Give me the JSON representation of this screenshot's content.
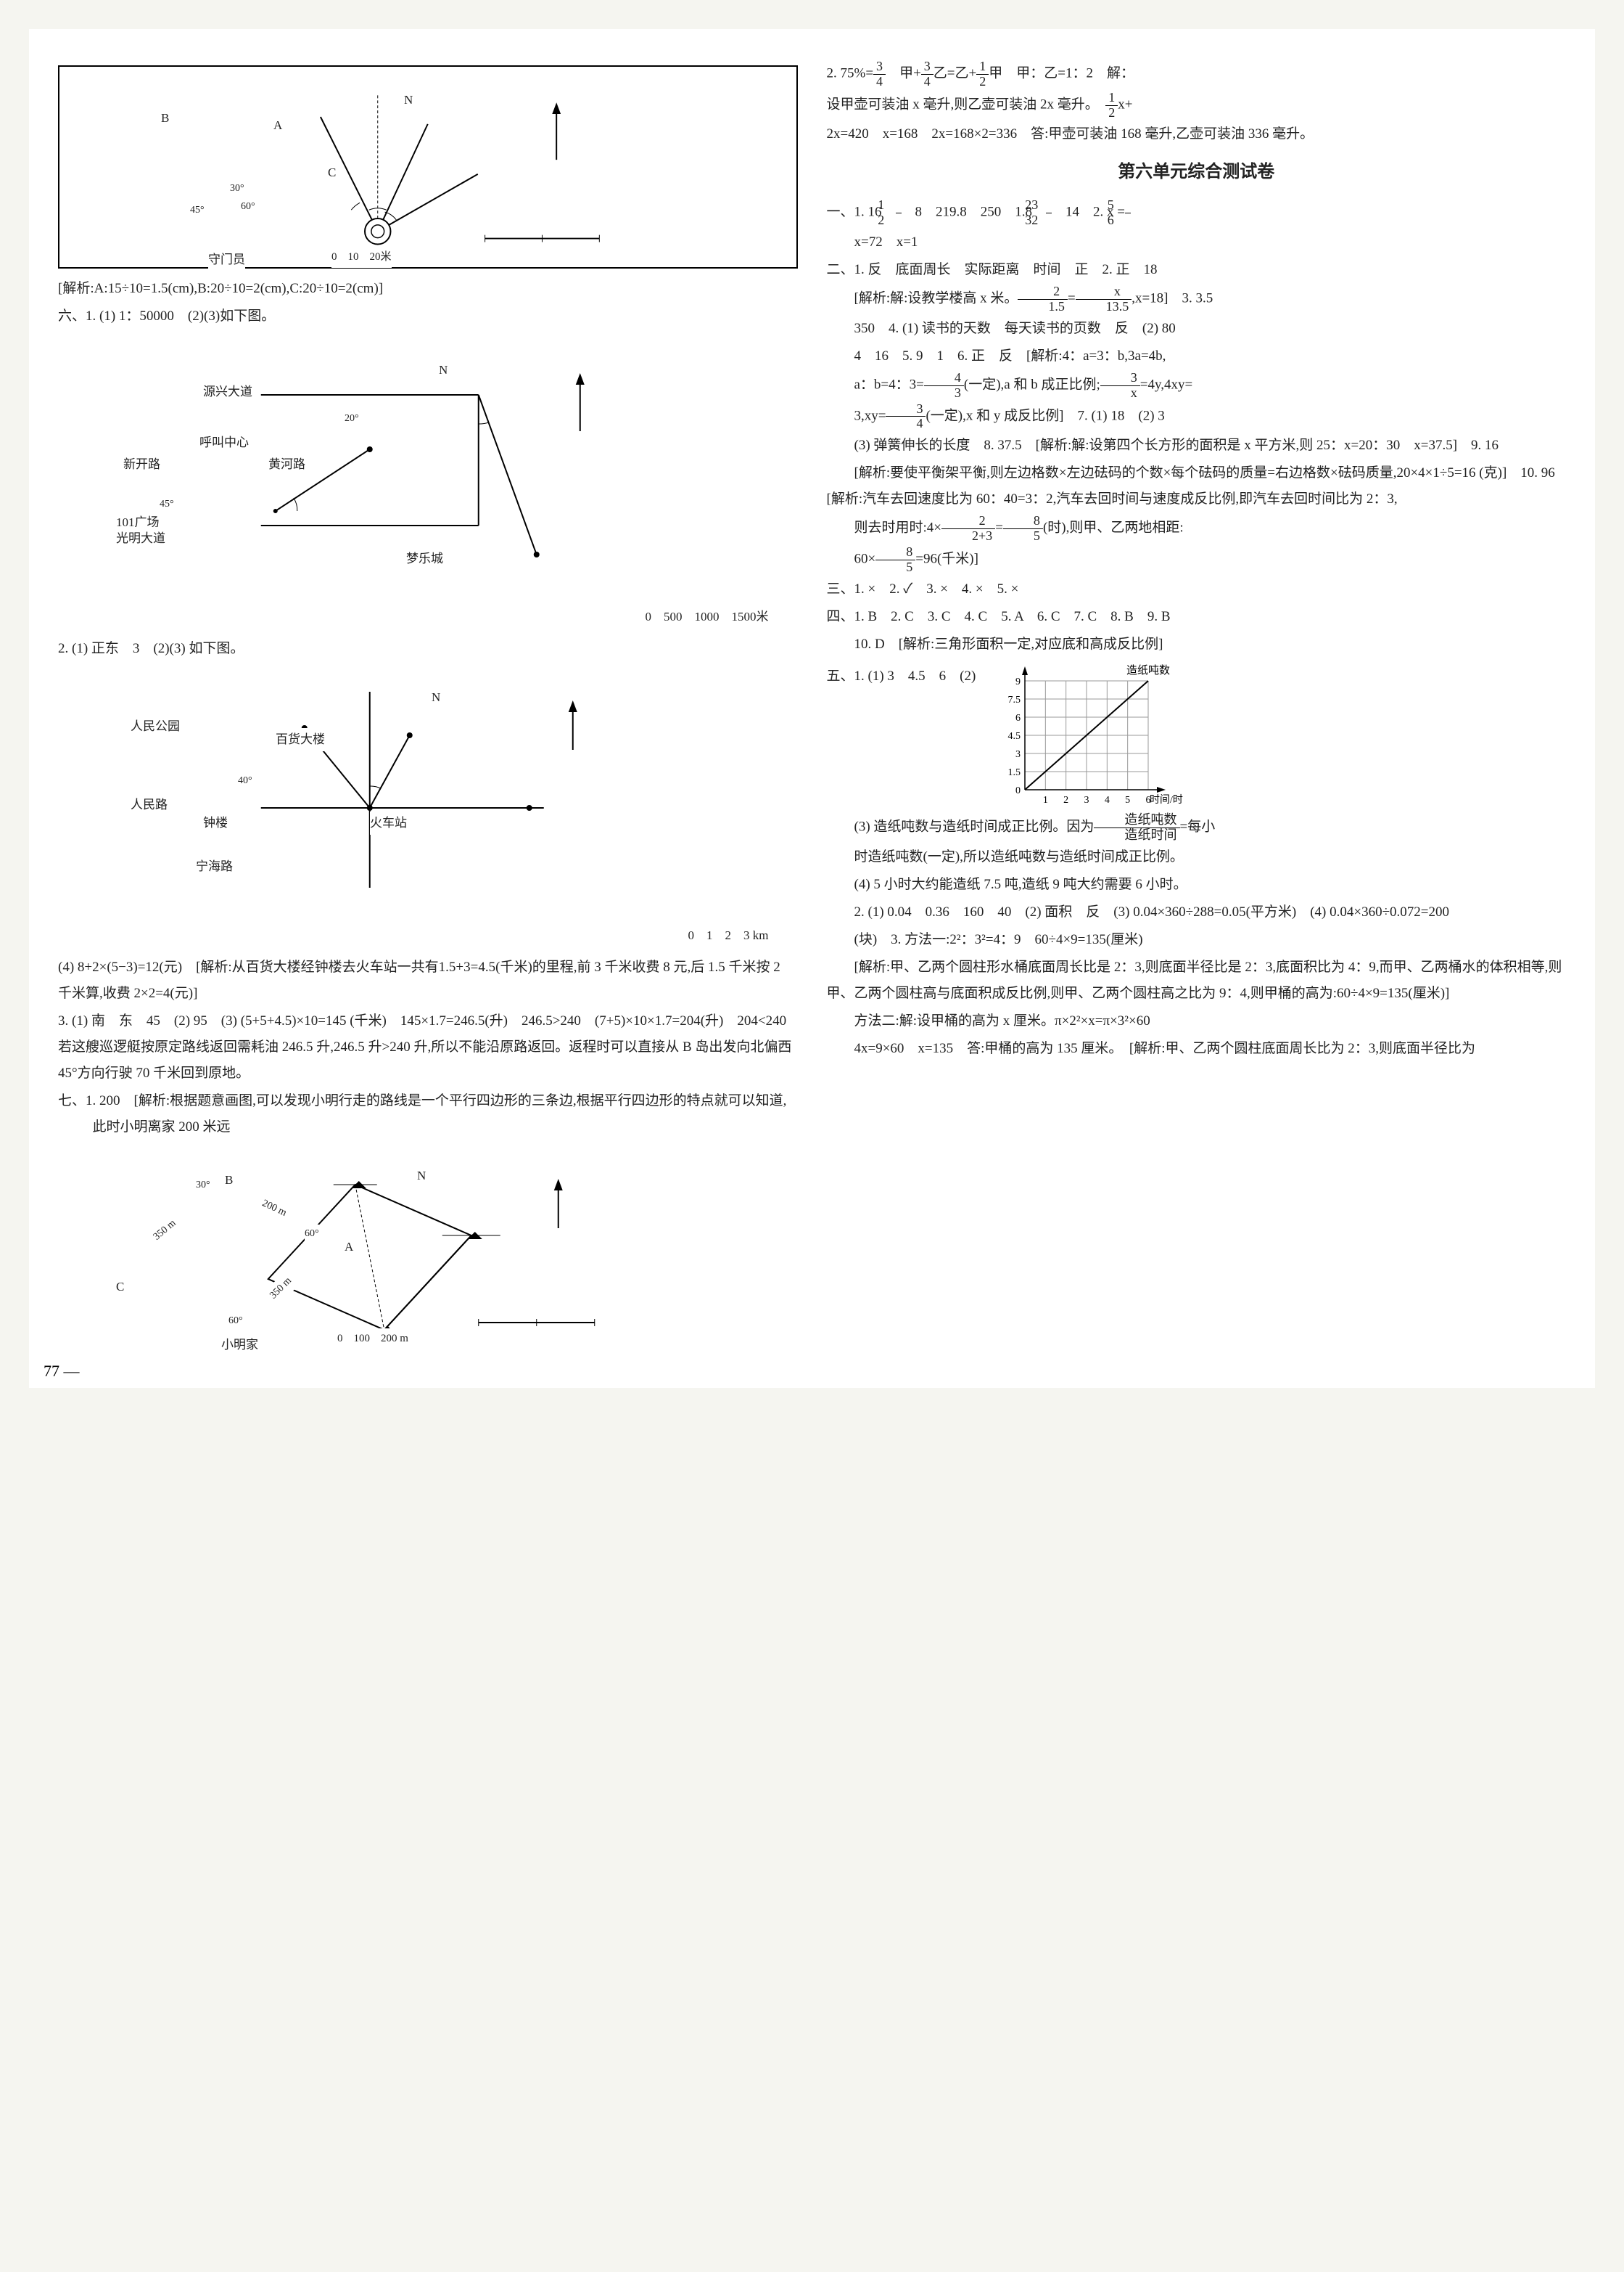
{
  "left": {
    "diagram1": {
      "label_B": "B",
      "label_A": "A",
      "label_C": "C",
      "angle1": "45°",
      "angle2": "30°",
      "angle3": "60°",
      "goalkeeper": "守门员",
      "north": "N",
      "scale": "0　10　20米"
    },
    "analysis1": "[解析:A:15÷10=1.5(cm),B:20÷10=2(cm),C:20÷10=2(cm)]",
    "q6_1": "六、1. (1) 1：50000　(2)(3)如下图。",
    "diagram2": {
      "road1": "源兴大道",
      "road2": "新开路",
      "center": "呼叫中心",
      "road3": "黄河路",
      "angle1": "45°",
      "angle2": "20°",
      "square": "101广场",
      "road4": "光明大道",
      "city": "梦乐城",
      "north": "N",
      "scale": "0　500　1000　1500米"
    },
    "q2": "2. (1) 正东　3　(2)(3) 如下图。",
    "diagram3": {
      "park": "人民公园",
      "building": "百货大楼",
      "road": "人民路",
      "angle": "40°",
      "tower": "钟楼",
      "station": "火车站",
      "road2": "宁海路",
      "north": "N",
      "scale": "0　1　2　3 km"
    },
    "q4": "(4) 8+2×(5−3)=12(元)　[解析:从百货大楼经钟楼去火车站一共有1.5+3=4.5(千米)的里程,前 3 千米收费 8 元,后 1.5 千米按 2 千米算,收费 2×2=4(元)]",
    "q3": "3. (1) 南　东　45　(2) 95　(3) (5+5+4.5)×10=145 (千米)　145×1.7=246.5(升)　246.5>240　(7+5)×10×1.7=204(升)　204<240　若这艘巡逻艇按原定路线返回需耗油 246.5 升,246.5 升>240 升,所以不能沿原路返回。返程时可以直接从 B 岛出发向北偏西 45°方向行驶 70 千米回到原地。",
    "q7": "七、1. 200　[解析:根据题意画图,可以发现小明行走的路线是一个平行四边形的三条边,根据平行四边形的特点就可以知道,此时小明离家 200 米远",
    "diagram4": {
      "p_B": "B",
      "angle1": "30°",
      "dist1": "350 m",
      "dist2": "200 m",
      "angle2": "60°",
      "p_A": "A",
      "p_C": "C",
      "angle3": "60°",
      "dist3": "350 m",
      "home": "小明家",
      "north": "N",
      "scale": "0　100　200 m"
    }
  },
  "right": {
    "line1_pre": "2. 75%=",
    "frac1": {
      "n": "3",
      "d": "4"
    },
    "line1_mid1": "　甲+",
    "frac2": {
      "n": "3",
      "d": "4"
    },
    "line1_mid2": "乙=乙+",
    "frac3": {
      "n": "1",
      "d": "2"
    },
    "line1_post": "甲　甲：乙=1：2　解：",
    "line2_pre": "设甲壶可装油 x 毫升,则乙壶可装油 2x 毫升。　",
    "frac4": {
      "n": "1",
      "d": "2"
    },
    "line2_post": "x+",
    "line3": "2x=420　x=168　2x=168×2=336　答:甲壶可装油 168 毫升,乙壶可装油 336 毫升。",
    "title": "第六单元综合测试卷",
    "sec1_pre": "一、1. 16　",
    "sec1_f1": {
      "n": "1",
      "d": "2"
    },
    "sec1_mid": "　8　219.8　250　1.8　",
    "sec1_f2": {
      "n": "23",
      "d": "32"
    },
    "sec1_mid2": "　14　2. x =",
    "sec1_f3": {
      "n": "5",
      "d": "6"
    },
    "sec1_line2": "x=72　x=1",
    "sec2_line1": "二、1. 反　底面周长　实际距离　时间　正　2. 正　18",
    "sec2_line2_pre": "[解析:解:设教学楼高 x 米。",
    "sec2_f1": {
      "n": "2",
      "d": "1.5"
    },
    "sec2_eq": "=",
    "sec2_f2": {
      "n": "x",
      "d": "13.5"
    },
    "sec2_line2_post": ",x=18]　3. 3.5",
    "sec2_line3": "350　4. (1) 读书的天数　每天读书的页数　反　(2) 80",
    "sec2_line4": "4　16　5. 9　1　6. 正　反　[解析:4：a=3：b,3a=4b,",
    "sec2_line5_pre": "a：b=4：3=",
    "sec2_f3": {
      "n": "4",
      "d": "3"
    },
    "sec2_line5_mid": "(一定),a 和 b 成正比例;",
    "sec2_f4": {
      "n": "3",
      "d": "x"
    },
    "sec2_line5_post": "=4y,4xy=",
    "sec2_line6_pre": "3,xy=",
    "sec2_f5": {
      "n": "3",
      "d": "4"
    },
    "sec2_line6_post": "(一定),x 和 y 成反比例]　7. (1) 18　(2) 3",
    "sec2_line7": "(3) 弹簧伸长的长度　8. 37.5　[解析:解:设第四个长方形的面积是 x 平方米,则 25：x=20：30　x=37.5]　9. 16",
    "sec2_line8": "[解析:要使平衡架平衡,则左边格数×左边砝码的个数×每个砝码的质量=右边格数×砝码质量,20×4×1÷5=16 (克)]　10. 96　[解析:汽车去回速度比为 60：40=3：2,汽车去回时间与速度成反比例,即汽车去回时间比为 2：3,",
    "sec2_line9_pre": "则去时用时:4×",
    "sec2_f6": {
      "n": "2",
      "d": "2+3"
    },
    "sec2_line9_eq": "=",
    "sec2_f7": {
      "n": "8",
      "d": "5"
    },
    "sec2_line9_post": "(时),则甲、乙两地相距:",
    "sec2_line10_pre": "60×",
    "sec2_f8": {
      "n": "8",
      "d": "5"
    },
    "sec2_line10_post": "=96(千米)]",
    "sec3": "三、1. ×　2. ✓　3. ×　4. ×　5. ×",
    "sec4_line1": "四、1. B　2. C　3. C　4. C　5. A　6. C　7. C　8. B　9. B",
    "sec4_line2": "10. D　[解析:三角形面积一定,对应底和高成反比例]",
    "sec5_line1": "五、1. (1) 3　4.5　6　(2)",
    "chart": {
      "ylabel": "造纸吨数",
      "xlabel": "时间/时",
      "y_ticks": [
        "9",
        "7.5",
        "6",
        "4.5",
        "3",
        "1.5",
        "0"
      ],
      "x_ticks": [
        "1",
        "2",
        "3",
        "4",
        "5",
        "6"
      ],
      "grid_color": "#999",
      "axis_color": "#000",
      "line_color": "#000",
      "points": [
        [
          0,
          0
        ],
        [
          1,
          1.5
        ],
        [
          2,
          3
        ],
        [
          3,
          4.5
        ],
        [
          4,
          6
        ],
        [
          5,
          7.5
        ],
        [
          6,
          9
        ]
      ],
      "y_max": 9,
      "x_max": 6
    },
    "sec5_line2_pre": "(3) 造纸吨数与造纸时间成正比例。因为",
    "sec5_f1": {
      "n": "造纸吨数",
      "d": "造纸时间"
    },
    "sec5_line2_post": "=每小",
    "sec5_line3": "时造纸吨数(一定),所以造纸吨数与造纸时间成正比例。",
    "sec5_line4": "(4) 5 小时大约能造纸 7.5 吨,造纸 9 吨大约需要 6 小时。",
    "sec5_line5": "2. (1) 0.04　0.36　160　40　(2) 面积　反　(3) 0.04×360÷288=0.05(平方米)　(4) 0.04×360÷0.072=200",
    "sec5_line6": "(块)　3. 方法一:2²：3²=4：9　60÷4×9=135(厘米)",
    "sec5_line7": "[解析:甲、乙两个圆柱形水桶底面周长比是 2：3,则底面半径比是 2：3,底面积比为 4：9,而甲、乙两桶水的体积相等,则甲、乙两个圆柱高与底面积成反比例,则甲、乙两个圆柱高之比为 9：4,则甲桶的高为:60÷4×9=135(厘米)]",
    "sec5_line8": "方法二:解:设甲桶的高为 x 厘米。π×2²×x=π×3²×60",
    "sec5_line9": "4x=9×60　x=135　答:甲桶的高为 135 厘米。　[解析:甲、乙两个圆柱底面周长比为 2：3,则底面半径比为"
  },
  "page_number": "77 —"
}
